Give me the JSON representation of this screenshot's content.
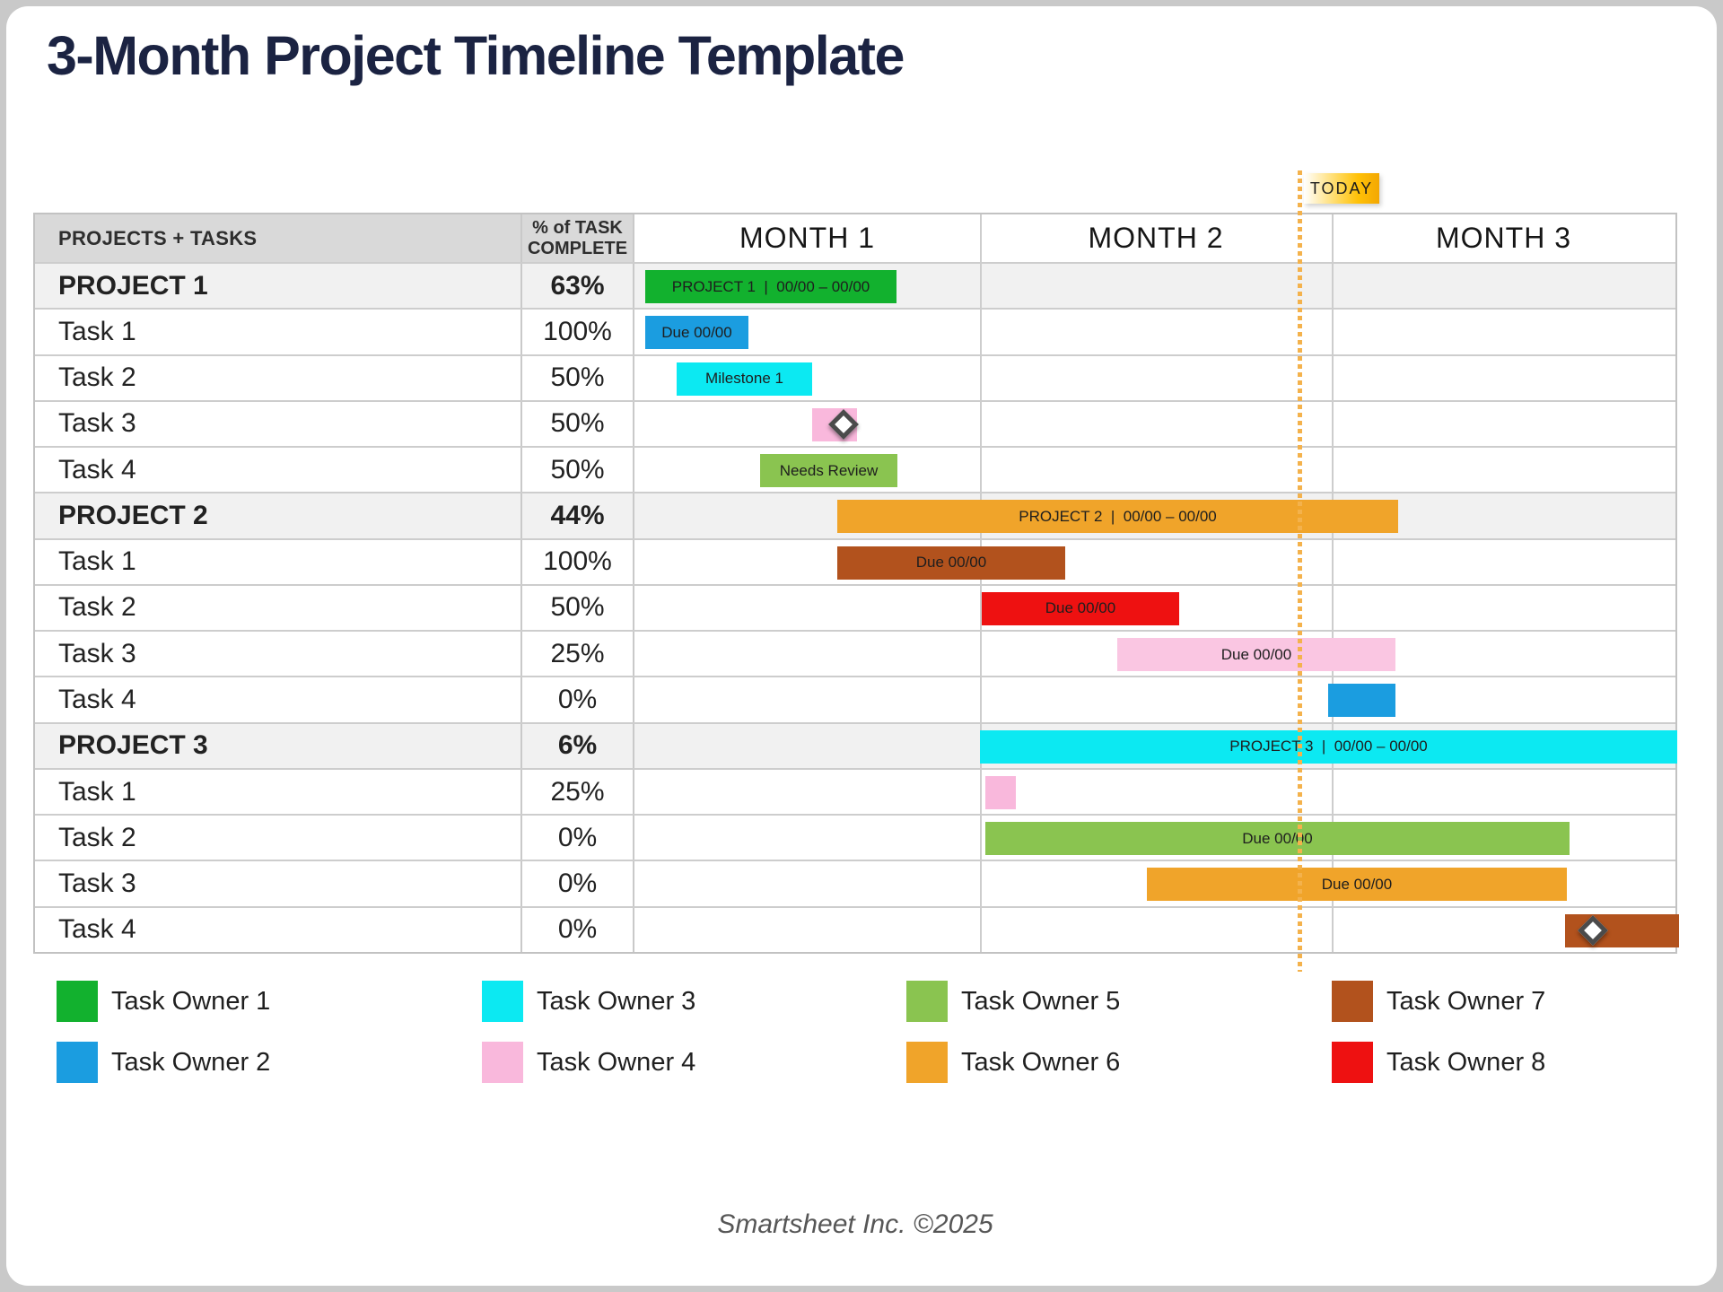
{
  "title": "3-Month Project Timeline Template",
  "today": {
    "label": "TODAY",
    "position_months": 1.91
  },
  "header": {
    "col1": "PROJECTS + TASKS",
    "col2": "% of TASK COMPLETE"
  },
  "footer": "Smartsheet Inc. ©2025",
  "colors": {
    "owner1": "#12b12e",
    "owner2": "#1b9de0",
    "owner3": "#0ce9f2",
    "owner4": "#f9b8dc",
    "owner4_light": "#fac6e2",
    "owner5": "#8ac450",
    "owner6": "#f0a42a",
    "owner7": "#b2521d",
    "owner8": "#ee1111"
  },
  "chart_data": {
    "type": "gantt",
    "months": [
      "MONTH 1",
      "MONTH 2",
      "MONTH 3"
    ],
    "rows": [
      {
        "name": "PROJECT 1",
        "percent": "63%",
        "project": true,
        "bar": {
          "start": 0.031,
          "end": 0.753,
          "label": "PROJECT 1  |  00/00 – 00/00",
          "color": "owner1"
        }
      },
      {
        "name": "Task 1",
        "percent": "100%",
        "project": false,
        "bar": {
          "start": 0.031,
          "end": 0.327,
          "label": "Due 00/00",
          "color": "owner2"
        }
      },
      {
        "name": "Task 2",
        "percent": "50%",
        "project": false,
        "bar": {
          "start": 0.121,
          "end": 0.51,
          "label": "Milestone 1",
          "color": "owner3"
        }
      },
      {
        "name": "Task 3",
        "percent": "50%",
        "project": false,
        "bar": {
          "start": 0.51,
          "end": 0.639,
          "label": "",
          "color": "owner4"
        },
        "milestone": 0.601
      },
      {
        "name": "Task 4",
        "percent": "50%",
        "project": false,
        "bar": {
          "start": 0.361,
          "end": 0.755,
          "label": "Needs Review",
          "color": "owner5"
        }
      },
      {
        "name": "PROJECT 2",
        "percent": "44%",
        "project": true,
        "bar": {
          "start": 0.582,
          "end": 2.193,
          "label": "PROJECT 2  |  00/00 – 00/00",
          "color": "owner6"
        }
      },
      {
        "name": "Task 1",
        "percent": "100%",
        "project": false,
        "bar": {
          "start": 0.582,
          "end": 1.237,
          "label": "Due 00/00",
          "color": "owner7"
        }
      },
      {
        "name": "Task 2",
        "percent": "50%",
        "project": false,
        "bar": {
          "start": 0.997,
          "end": 1.564,
          "label": "Due 00/00",
          "color": "owner8"
        }
      },
      {
        "name": "Task 3",
        "percent": "25%",
        "project": false,
        "bar": {
          "start": 1.387,
          "end": 2.186,
          "label": "Due 00/00",
          "color": "owner4_light"
        }
      },
      {
        "name": "Task 4",
        "percent": "0%",
        "project": false,
        "bar": {
          "start": 1.992,
          "end": 2.186,
          "label": "",
          "color": "owner2"
        }
      },
      {
        "name": "PROJECT 3",
        "percent": "6%",
        "project": true,
        "bar": {
          "start": 0.992,
          "end": 2.995,
          "label": "PROJECT 3  |  00/00 – 00/00",
          "color": "owner3"
        }
      },
      {
        "name": "Task 1",
        "percent": "25%",
        "project": false,
        "bar": {
          "start": 1.008,
          "end": 1.095,
          "label": "",
          "color": "owner4"
        }
      },
      {
        "name": "Task 2",
        "percent": "0%",
        "project": false,
        "bar": {
          "start": 1.008,
          "end": 2.686,
          "label": "Due 00/00",
          "color": "owner5"
        }
      },
      {
        "name": "Task 3",
        "percent": "0%",
        "project": false,
        "bar": {
          "start": 1.472,
          "end": 2.678,
          "label": "Due 00/00",
          "color": "owner6"
        }
      },
      {
        "name": "Task 4",
        "percent": "0%",
        "project": false,
        "bar": {
          "start": 2.672,
          "end": 3.0,
          "label": "",
          "color": "owner7"
        },
        "milestone": 2.753
      }
    ],
    "legend": [
      {
        "label": "Task Owner 1",
        "color": "owner1"
      },
      {
        "label": "Task Owner 2",
        "color": "owner2"
      },
      {
        "label": "Task Owner 3",
        "color": "owner3"
      },
      {
        "label": "Task Owner 4",
        "color": "owner4"
      },
      {
        "label": "Task Owner 5",
        "color": "owner5"
      },
      {
        "label": "Task Owner 6",
        "color": "owner6"
      },
      {
        "label": "Task Owner 7",
        "color": "owner7"
      },
      {
        "label": "Task Owner 8",
        "color": "owner8"
      }
    ]
  }
}
